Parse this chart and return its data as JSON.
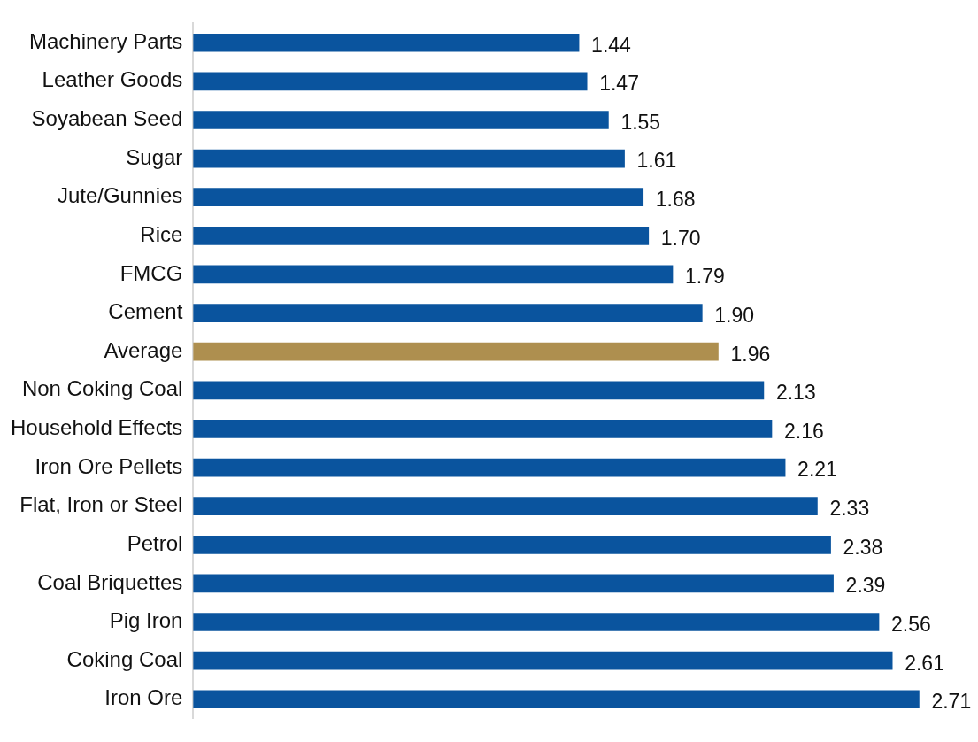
{
  "chart_data": {
    "type": "bar",
    "orientation": "horizontal",
    "categories": [
      "Machinery Parts",
      "Leather Goods",
      "Soyabean Seed",
      "Sugar",
      "Jute/Gunnies",
      "Rice",
      "FMCG",
      "Cement",
      "Average",
      "Non Coking Coal",
      "Household Effects",
      "Iron Ore Pellets",
      "Flat, Iron or Steel",
      "Petrol",
      "Coal Briquettes",
      "Pig Iron",
      "Coking Coal",
      "Iron Ore"
    ],
    "values": [
      1.44,
      1.47,
      1.55,
      1.61,
      1.68,
      1.7,
      1.79,
      1.9,
      1.96,
      2.13,
      2.16,
      2.21,
      2.33,
      2.38,
      2.39,
      2.56,
      2.61,
      2.71
    ],
    "value_labels": [
      "1.44",
      "1.47",
      "1.55",
      "1.61",
      "1.68",
      "1.70",
      "1.79",
      "1.90",
      "1.96",
      "2.13",
      "2.16",
      "2.21",
      "2.33",
      "2.38",
      "2.39",
      "2.56",
      "2.61",
      "2.71"
    ],
    "colors": [
      "#0a549e",
      "#0a549e",
      "#0a549e",
      "#0a549e",
      "#0a549e",
      "#0a549e",
      "#0a549e",
      "#0a549e",
      "#ae8f4f",
      "#0a549e",
      "#0a549e",
      "#0a549e",
      "#0a549e",
      "#0a549e",
      "#0a549e",
      "#0a549e",
      "#0a549e",
      "#0a549e"
    ],
    "xlim": [
      0,
      2.93
    ],
    "grid": false,
    "legend": false,
    "tick_labels": "y"
  }
}
